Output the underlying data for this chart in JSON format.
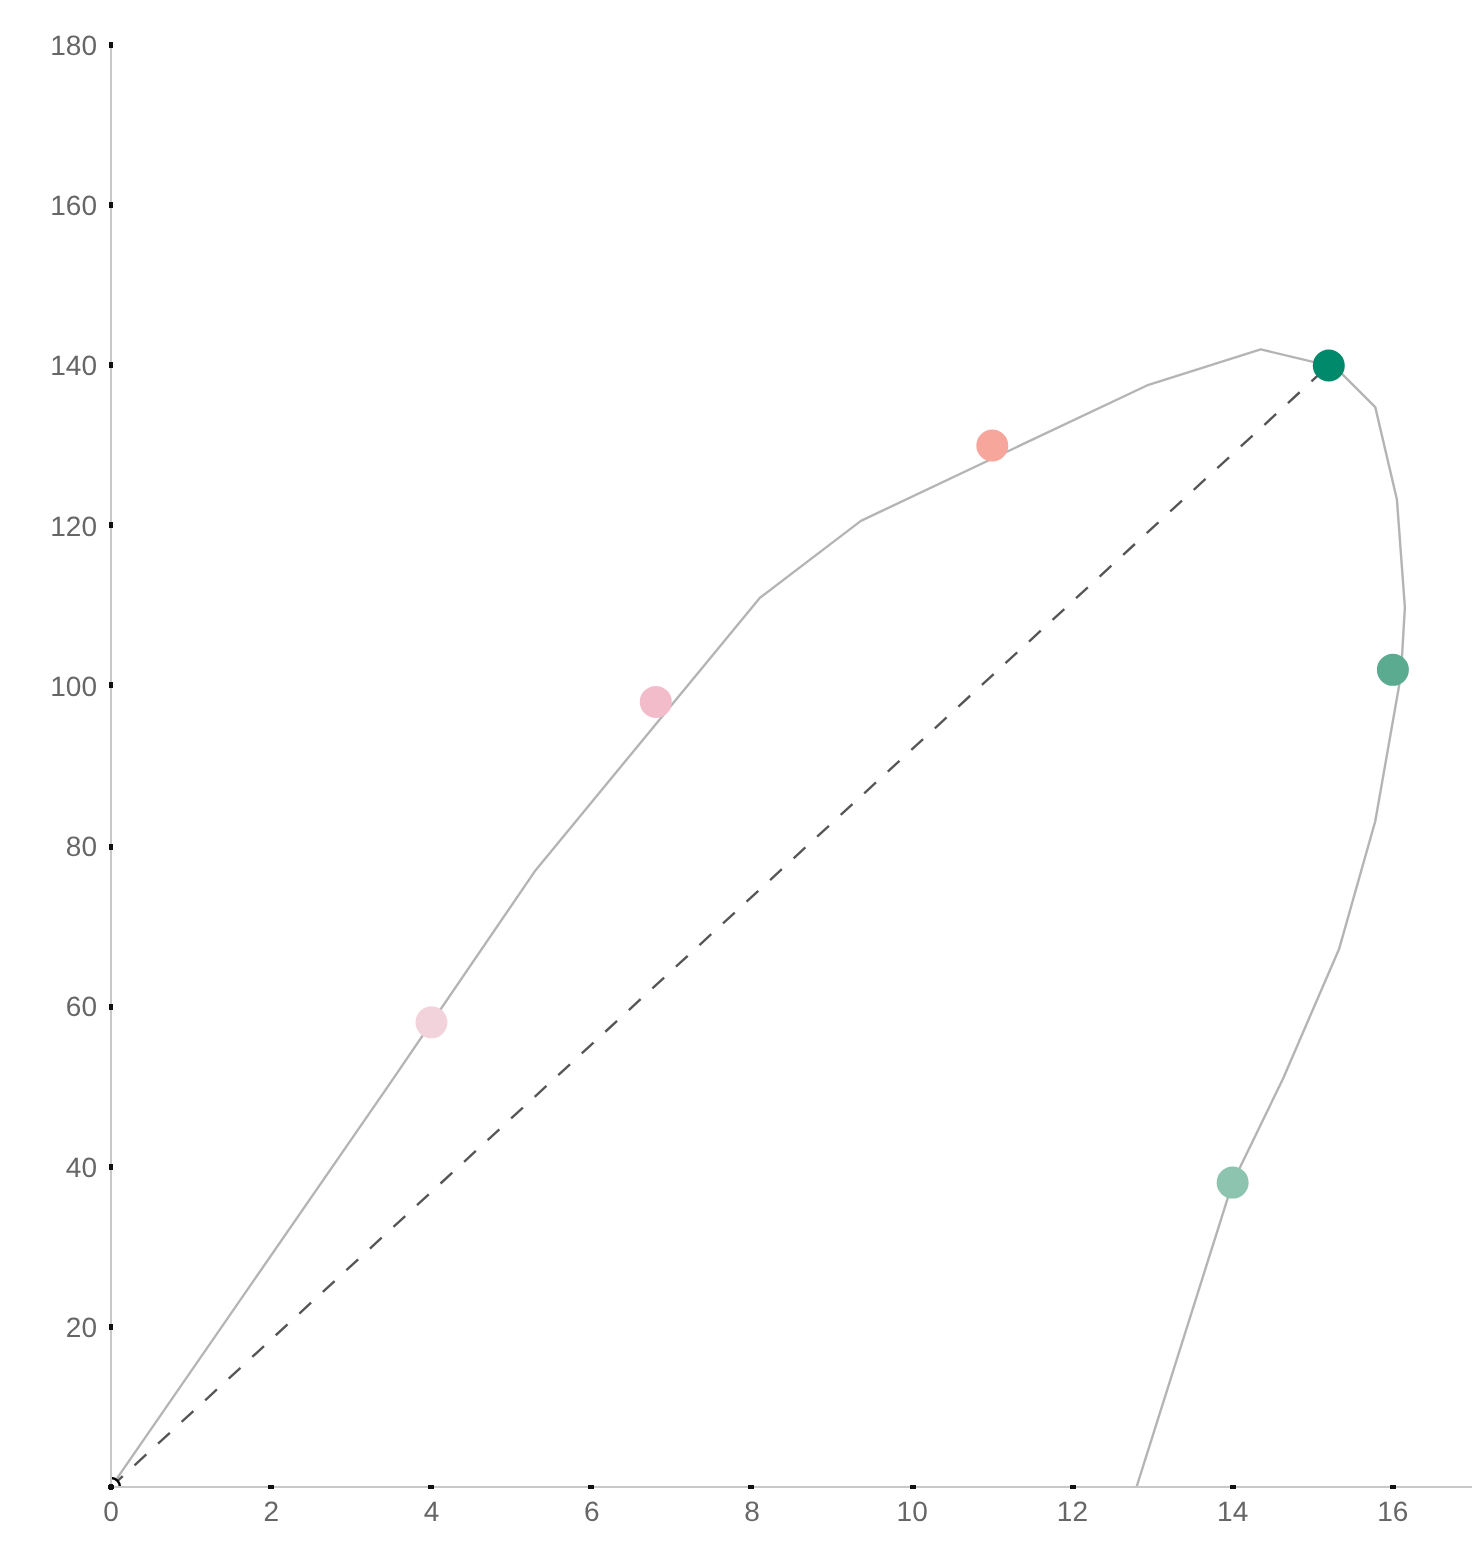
{
  "chart_data": {
    "type": "scatter",
    "xlim": [
      0,
      17
    ],
    "ylim": [
      0,
      180
    ],
    "xticks": [
      0,
      2,
      4,
      6,
      8,
      10,
      12,
      14,
      16
    ],
    "yticks": [
      {
        "value": 0,
        "label": null
      },
      20,
      40,
      60,
      80,
      100,
      120,
      140,
      160,
      180
    ],
    "grid": false,
    "series": [
      {
        "type": "line",
        "color": "#b4b4b4",
        "line_style": "solid",
        "marker": "none",
        "x": [
          0,
          3.47,
          5.3,
          8.1,
          9.36,
          12.93,
          14.35,
          15.28,
          15.78,
          16.05,
          16.15,
          16.1,
          15.78,
          15.33,
          14.63,
          14,
          12.8
        ],
        "values": [
          0,
          50.2,
          77,
          111,
          120.6,
          137.5,
          142,
          139.8,
          134.8,
          123.3,
          109.8,
          101.3,
          83.1,
          67.2,
          51,
          38,
          0
        ]
      },
      {
        "type": "line",
        "color": "#555555",
        "line_style": "dashed",
        "marker": "none",
        "x": [
          0,
          15.2
        ],
        "values": [
          0,
          140
        ]
      },
      {
        "marker": "circle",
        "x": [
          4,
          6.8,
          11,
          15.2,
          16,
          14
        ],
        "values": [
          58,
          98,
          130,
          140,
          102,
          38
        ],
        "colors": [
          "#f2d3db",
          "#f2bccb",
          "#f7a69c",
          "#00896a",
          "#5aab8f",
          "#8cc4b0"
        ]
      },
      {
        "marker": "circle_dot",
        "color": "#000000",
        "x": [
          0
        ],
        "values": [
          0
        ]
      }
    ]
  }
}
